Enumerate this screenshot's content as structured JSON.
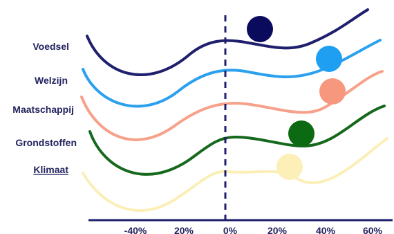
{
  "colors": {
    "navy": "#1f1f6e",
    "dark_navy": "#0b0b5e",
    "sky": "#2ca0ee",
    "sky_dot": "#1e9ff2",
    "salmon": "#f7a08a",
    "salmon_dot": "#f6977e",
    "green": "#15681c",
    "green_dot": "#0b6a12",
    "cream": "#fbefb8",
    "cream_dot": "#fcefb8",
    "text": "#23235f",
    "background": "#ffffff"
  },
  "axis": {
    "ticks": [
      "-40%",
      "20%",
      "0%",
      "20%",
      "40%",
      "60%"
    ],
    "zero_line": "dashed"
  },
  "rows": [
    {
      "label": "Voedsel",
      "curve_color": "navy",
      "dot_color": "dark_navy",
      "label_underline": false
    },
    {
      "label": "Welzijn",
      "curve_color": "sky",
      "dot_color": "sky_dot",
      "label_underline": false
    },
    {
      "label": "Maatschappij",
      "curve_color": "salmon",
      "dot_color": "salmon_dot",
      "label_underline": false
    },
    {
      "label": "Grondstoffen",
      "curve_color": "green",
      "dot_color": "green_dot",
      "label_underline": false
    },
    {
      "label": "Klimaat",
      "curve_color": "cream",
      "dot_color": "cream_dot",
      "label_underline": true
    }
  ]
}
